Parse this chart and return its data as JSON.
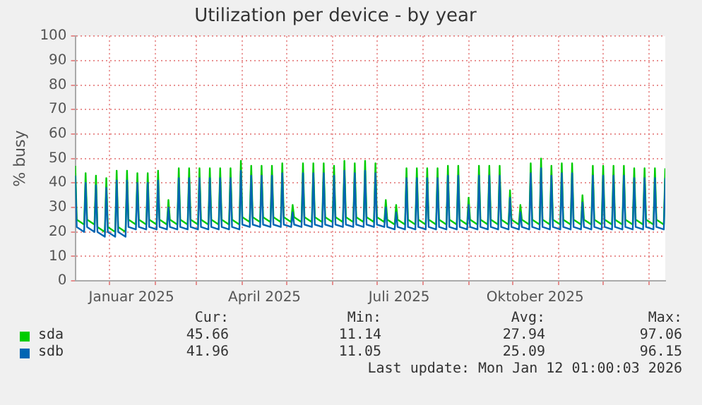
{
  "chart_data": {
    "type": "line",
    "title": "Utilization per device - by year",
    "ylabel": "% busy",
    "xlim": [
      "2024-12-09",
      "2026-01-12"
    ],
    "ylim": [
      0,
      100
    ],
    "yticks": [
      0,
      10,
      20,
      30,
      40,
      50,
      60,
      70,
      80,
      90,
      100
    ],
    "xticks": [
      {
        "value": "2025-01-01",
        "label": null
      },
      {
        "value": "2025-01-16",
        "label": "Januar 2025"
      },
      {
        "value": "2025-02-01",
        "label": null
      },
      {
        "value": "2025-03-01",
        "label": null
      },
      {
        "value": "2025-04-01",
        "label": null
      },
      {
        "value": "2025-04-16",
        "label": "April 2025"
      },
      {
        "value": "2025-05-01",
        "label": null
      },
      {
        "value": "2025-06-01",
        "label": null
      },
      {
        "value": "2025-07-01",
        "label": null
      },
      {
        "value": "2025-07-16",
        "label": "Juli 2025"
      },
      {
        "value": "2025-08-01",
        "label": null
      },
      {
        "value": "2025-09-01",
        "label": null
      },
      {
        "value": "2025-10-01",
        "label": null
      },
      {
        "value": "2025-10-16",
        "label": "Oktober 2025"
      },
      {
        "value": "2025-11-01",
        "label": null
      },
      {
        "value": "2025-12-01",
        "label": null
      },
      {
        "value": "2026-01-01",
        "label": null
      }
    ],
    "grid": true,
    "legend": "bottom",
    "marker": "none",
    "line_style": "solid",
    "x": [
      "2024-12-09",
      "2024-12-10",
      "2024-12-15",
      "2024-12-16",
      "2024-12-17",
      "2024-12-22",
      "2024-12-23",
      "2024-12-24",
      "2024-12-29",
      "2024-12-30",
      "2024-12-31",
      "2025-01-05",
      "2025-01-06",
      "2025-01-07",
      "2025-01-12",
      "2025-01-13",
      "2025-01-14",
      "2025-01-19",
      "2025-01-20",
      "2025-01-21",
      "2025-01-26",
      "2025-01-27",
      "2025-01-28",
      "2025-02-02",
      "2025-02-03",
      "2025-02-04",
      "2025-02-09",
      "2025-02-10",
      "2025-02-11",
      "2025-02-16",
      "2025-02-17",
      "2025-02-18",
      "2025-02-23",
      "2025-02-24",
      "2025-02-25",
      "2025-03-02",
      "2025-03-03",
      "2025-03-04",
      "2025-03-09",
      "2025-03-10",
      "2025-03-11",
      "2025-03-16",
      "2025-03-17",
      "2025-03-18",
      "2025-03-23",
      "2025-03-24",
      "2025-03-25",
      "2025-03-30",
      "2025-03-31",
      "2025-04-01",
      "2025-04-06",
      "2025-04-07",
      "2025-04-08",
      "2025-04-13",
      "2025-04-14",
      "2025-04-15",
      "2025-04-20",
      "2025-04-21",
      "2025-04-22",
      "2025-04-27",
      "2025-04-28",
      "2025-04-29",
      "2025-05-04",
      "2025-05-05",
      "2025-05-06",
      "2025-05-11",
      "2025-05-12",
      "2025-05-13",
      "2025-05-18",
      "2025-05-19",
      "2025-05-20",
      "2025-05-25",
      "2025-05-26",
      "2025-05-27",
      "2025-06-01",
      "2025-06-02",
      "2025-06-03",
      "2025-06-08",
      "2025-06-09",
      "2025-06-10",
      "2025-06-15",
      "2025-06-16",
      "2025-06-17",
      "2025-06-22",
      "2025-06-23",
      "2025-06-24",
      "2025-06-29",
      "2025-06-30",
      "2025-07-01",
      "2025-07-06",
      "2025-07-07",
      "2025-07-08",
      "2025-07-13",
      "2025-07-14",
      "2025-07-15",
      "2025-07-20",
      "2025-07-21",
      "2025-07-22",
      "2025-07-27",
      "2025-07-28",
      "2025-07-29",
      "2025-08-03",
      "2025-08-04",
      "2025-08-05",
      "2025-08-10",
      "2025-08-11",
      "2025-08-12",
      "2025-08-17",
      "2025-08-18",
      "2025-08-19",
      "2025-08-24",
      "2025-08-25",
      "2025-08-26",
      "2025-08-31",
      "2025-09-01",
      "2025-09-02",
      "2025-09-07",
      "2025-09-08",
      "2025-09-09",
      "2025-09-14",
      "2025-09-15",
      "2025-09-16",
      "2025-09-21",
      "2025-09-22",
      "2025-09-23",
      "2025-09-28",
      "2025-09-29",
      "2025-09-30",
      "2025-10-05",
      "2025-10-06",
      "2025-10-07",
      "2025-10-12",
      "2025-10-13",
      "2025-10-14",
      "2025-10-19",
      "2025-10-20",
      "2025-10-21",
      "2025-10-26",
      "2025-10-27",
      "2025-10-28",
      "2025-11-02",
      "2025-11-03",
      "2025-11-04",
      "2025-11-09",
      "2025-11-10",
      "2025-11-11",
      "2025-11-16",
      "2025-11-17",
      "2025-11-18",
      "2025-11-23",
      "2025-11-24",
      "2025-11-25",
      "2025-11-30",
      "2025-12-01",
      "2025-12-02",
      "2025-12-07",
      "2025-12-08",
      "2025-12-09",
      "2025-12-14",
      "2025-12-15",
      "2025-12-16",
      "2025-12-21",
      "2025-12-22",
      "2025-12-23",
      "2025-12-28",
      "2025-12-29",
      "2025-12-30",
      "2026-01-04",
      "2026-01-05",
      "2026-01-06",
      "2026-01-11",
      "2026-01-12"
    ],
    "series": [
      {
        "name": "sda",
        "color": "#00cc00",
        "values": [
          47,
          25,
          23,
          44,
          25,
          23,
          43,
          22,
          20,
          42,
          22,
          20,
          45,
          22,
          20,
          45,
          25,
          23,
          44,
          25,
          23,
          44,
          25,
          23,
          45,
          25,
          23,
          33,
          25,
          23,
          46,
          25,
          23,
          46,
          25,
          23,
          46,
          25,
          23,
          46,
          25,
          23,
          46,
          25,
          23,
          46,
          25,
          23,
          49,
          26,
          24,
          47,
          26,
          24,
          47,
          26,
          24,
          47,
          26,
          24,
          48,
          26,
          24,
          31,
          26,
          24,
          48,
          26,
          24,
          48,
          26,
          24,
          48,
          26,
          24,
          47,
          26,
          24,
          49,
          26,
          24,
          48,
          26,
          24,
          49,
          26,
          24,
          48,
          26,
          24,
          33,
          25,
          23,
          31,
          25,
          23,
          46,
          25,
          23,
          46,
          25,
          23,
          46,
          25,
          23,
          46,
          25,
          23,
          47,
          25,
          23,
          47,
          25,
          23,
          34,
          25,
          23,
          47,
          25,
          23,
          47,
          25,
          23,
          47,
          25,
          23,
          37,
          25,
          23,
          31,
          25,
          23,
          48,
          25,
          23,
          50,
          25,
          23,
          47,
          25,
          23,
          48,
          25,
          23,
          48,
          25,
          23,
          35,
          25,
          23,
          47,
          25,
          23,
          47,
          25,
          23,
          47,
          25,
          23,
          47,
          25,
          23,
          46,
          25,
          23,
          46,
          25,
          23,
          46,
          25,
          23,
          46
        ]
      },
      {
        "name": "sdb",
        "color": "#0066b3",
        "values": [
          43,
          22,
          20,
          40,
          22,
          20,
          39,
          20,
          18,
          38,
          20,
          18,
          41,
          20,
          18,
          41,
          22,
          21,
          40,
          22,
          21,
          40,
          22,
          21,
          41,
          22,
          21,
          30,
          22,
          21,
          42,
          22,
          21,
          42,
          22,
          21,
          42,
          22,
          21,
          42,
          22,
          21,
          42,
          22,
          21,
          42,
          22,
          21,
          45,
          23,
          22,
          43,
          23,
          22,
          43,
          23,
          22,
          43,
          23,
          22,
          44,
          23,
          22,
          28,
          23,
          22,
          44,
          23,
          22,
          44,
          23,
          22,
          44,
          23,
          22,
          43,
          23,
          22,
          45,
          23,
          22,
          44,
          23,
          22,
          45,
          23,
          22,
          44,
          23,
          22,
          30,
          22,
          21,
          28,
          22,
          21,
          42,
          22,
          21,
          42,
          22,
          21,
          42,
          22,
          21,
          42,
          22,
          21,
          43,
          22,
          21,
          43,
          22,
          21,
          31,
          22,
          21,
          43,
          22,
          21,
          43,
          22,
          21,
          43,
          22,
          21,
          34,
          22,
          21,
          28,
          22,
          21,
          44,
          22,
          21,
          46,
          22,
          21,
          43,
          22,
          21,
          44,
          22,
          21,
          44,
          22,
          21,
          32,
          22,
          21,
          43,
          22,
          21,
          43,
          22,
          21,
          43,
          22,
          21,
          43,
          22,
          21,
          42,
          22,
          21,
          42,
          22,
          21,
          42,
          22,
          21,
          42
        ]
      }
    ],
    "annotations": [
      "Cur:",
      "Min:",
      "Avg:",
      "Max:",
      "45.66",
      "11.14",
      "27.94",
      "97.06",
      "41.96",
      "11.05",
      "25.09",
      "96.15",
      "Last update: Mon Jan 12 01:00:03 2026"
    ]
  }
}
